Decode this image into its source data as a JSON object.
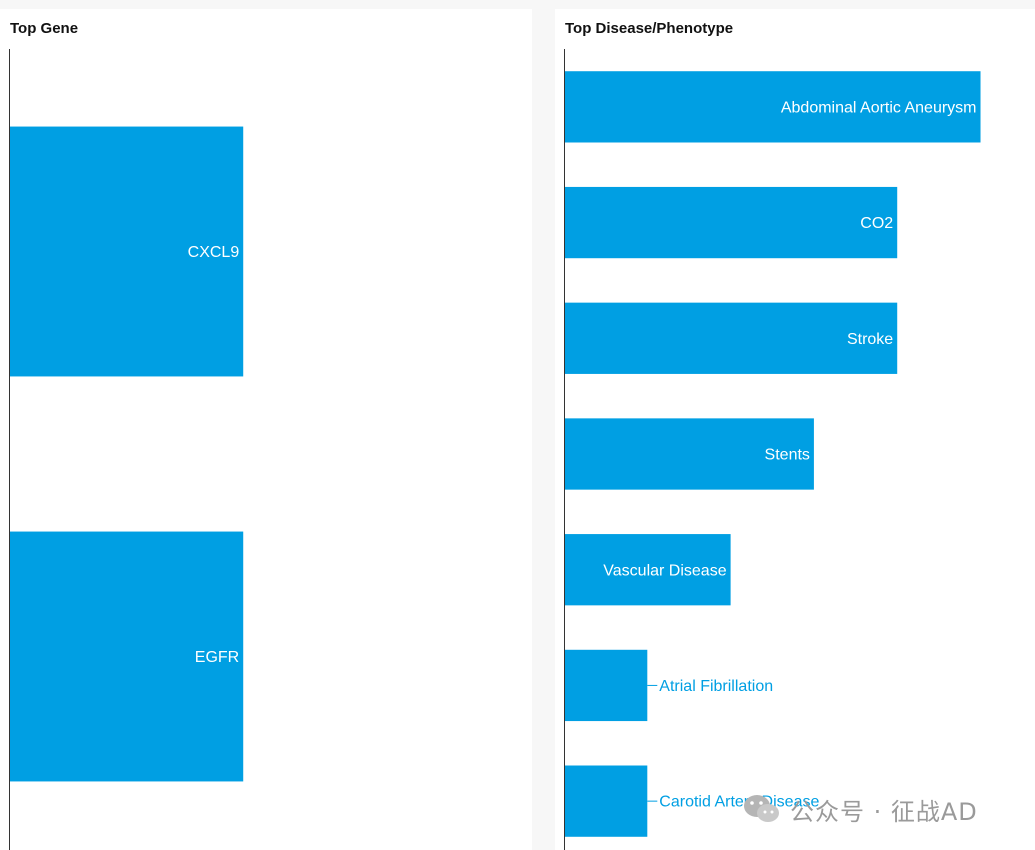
{
  "charts": {
    "gene": {
      "title": "Top Gene"
    },
    "disease": {
      "title": "Top Disease/Phenotype"
    }
  },
  "chart_data": [
    {
      "type": "bar",
      "orientation": "horizontal",
      "title": "Top Gene",
      "categories": [
        "CXCL9",
        "EGFR"
      ],
      "values": [
        1,
        1
      ],
      "xlim": [
        0,
        2.25
      ],
      "label_position": "inside-end",
      "bar_color": "#009fe3",
      "grid": false
    },
    {
      "type": "bar",
      "orientation": "horizontal",
      "title": "Top Disease/Phenotype",
      "categories": [
        "Abdominal Aortic Aneurysm",
        "CO2",
        "Stroke",
        "Stents",
        "Vascular Disease",
        "Atrial Fibrillation",
        "Carotid Artery Disease"
      ],
      "values": [
        5,
        4,
        4,
        3,
        2,
        1,
        1
      ],
      "xlim": [
        0,
        5.75
      ],
      "label_position": "inside-end, outside when bar is too short",
      "bar_color": "#009fe3",
      "grid": false
    }
  ],
  "watermark": {
    "text": "公众号 · 征战AD"
  },
  "colors": {
    "bar": "#009fe3",
    "label_inside": "#ffffff",
    "label_outside": "#009fe3",
    "axis": "#333333"
  }
}
